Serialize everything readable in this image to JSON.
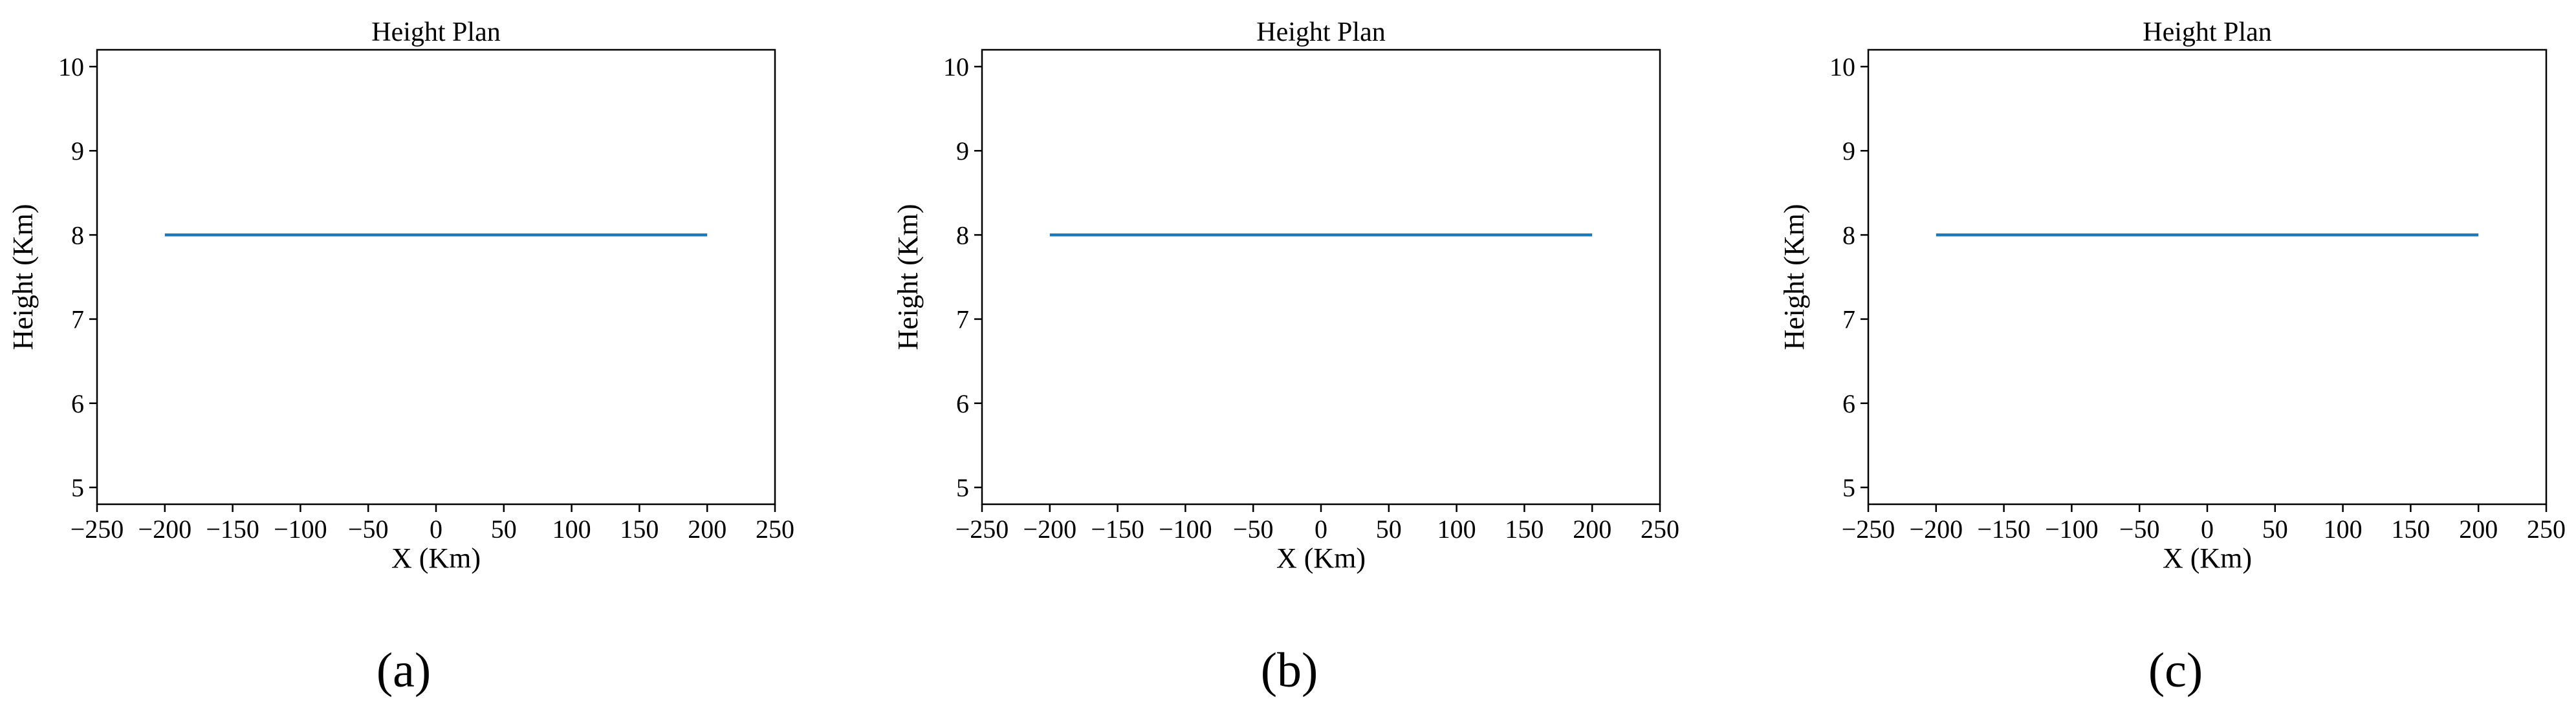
{
  "chart_data": [
    {
      "type": "line",
      "panel_label": "(a)",
      "title": "Height Plan",
      "xlabel": "X (Km)",
      "ylabel": "Height (Km)",
      "xlim": [
        -250,
        250
      ],
      "ylim": [
        4.8,
        10.2
      ],
      "xticks": [
        -250,
        -200,
        -150,
        -100,
        -50,
        0,
        50,
        100,
        150,
        200,
        250
      ],
      "xtick_labels": [
        "−250",
        "−200",
        "−150",
        "−100",
        "−50",
        "0",
        "50",
        "100",
        "150",
        "200",
        "250"
      ],
      "yticks": [
        5,
        6,
        7,
        8,
        9,
        10
      ],
      "ytick_labels": [
        "5",
        "6",
        "7",
        "8",
        "9",
        "10"
      ],
      "grid": false,
      "series": [
        {
          "x": [
            -200,
            200
          ],
          "y": [
            8,
            8
          ],
          "color": "#1f77b4"
        }
      ]
    },
    {
      "type": "line",
      "panel_label": "(b)",
      "title": "Height Plan",
      "xlabel": "X (Km)",
      "ylabel": "Height (Km)",
      "xlim": [
        -250,
        250
      ],
      "ylim": [
        4.8,
        10.2
      ],
      "xticks": [
        -250,
        -200,
        -150,
        -100,
        -50,
        0,
        50,
        100,
        150,
        200,
        250
      ],
      "xtick_labels": [
        "−250",
        "−200",
        "−150",
        "−100",
        "−50",
        "0",
        "50",
        "100",
        "150",
        "200",
        "250"
      ],
      "yticks": [
        5,
        6,
        7,
        8,
        9,
        10
      ],
      "ytick_labels": [
        "5",
        "6",
        "7",
        "8",
        "9",
        "10"
      ],
      "grid": false,
      "series": [
        {
          "x": [
            -200,
            200
          ],
          "y": [
            8,
            8
          ],
          "color": "#1f77b4"
        }
      ]
    },
    {
      "type": "line",
      "panel_label": "(c)",
      "title": "Height Plan",
      "xlabel": "X (Km)",
      "ylabel": "Height (Km)",
      "xlim": [
        -250,
        250
      ],
      "ylim": [
        4.8,
        10.2
      ],
      "xticks": [
        -250,
        -200,
        -150,
        -100,
        -50,
        0,
        50,
        100,
        150,
        200,
        250
      ],
      "xtick_labels": [
        "−250",
        "−200",
        "−150",
        "−100",
        "−50",
        "0",
        "50",
        "100",
        "150",
        "200",
        "250"
      ],
      "yticks": [
        5,
        6,
        7,
        8,
        9,
        10
      ],
      "ytick_labels": [
        "5",
        "6",
        "7",
        "8",
        "9",
        "10"
      ],
      "grid": false,
      "series": [
        {
          "x": [
            -200,
            200
          ],
          "y": [
            8,
            8
          ],
          "color": "#1f77b4"
        }
      ]
    }
  ]
}
